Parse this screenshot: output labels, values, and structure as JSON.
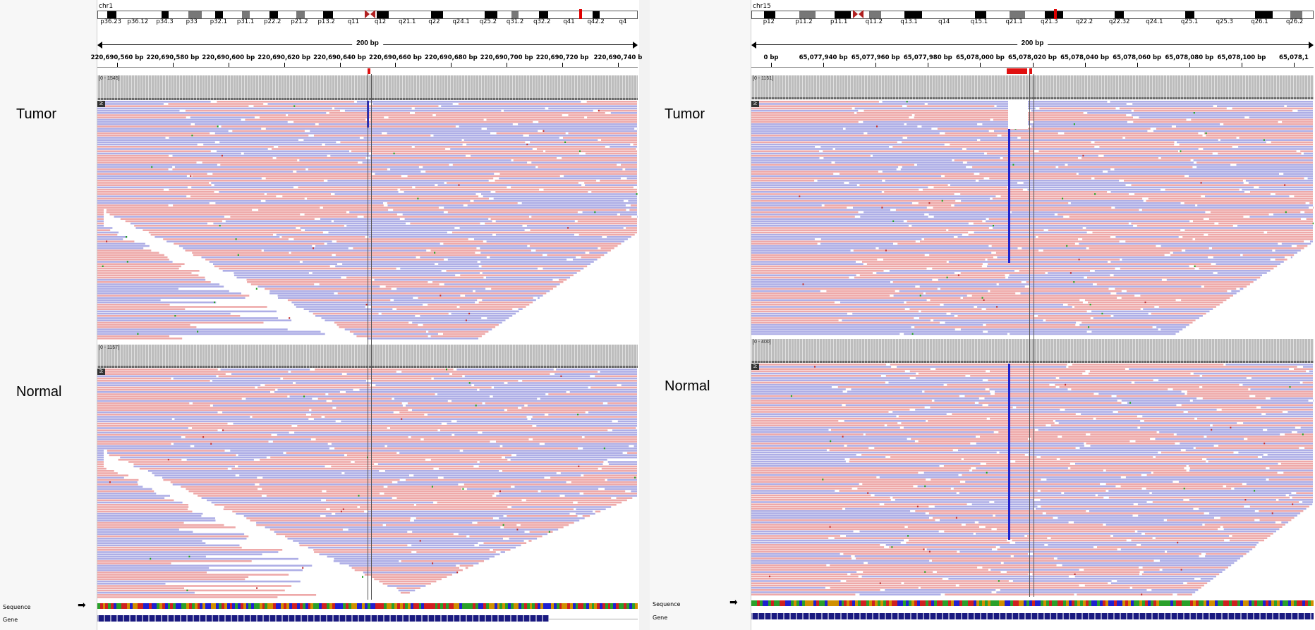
{
  "left": {
    "chromosome": "chr1",
    "bands": [
      "p36.23",
      "p36.12",
      "p34.3",
      "p33",
      "p32.1",
      "p31.1",
      "p22.2",
      "p21.2",
      "p13.2",
      "q11",
      "q12",
      "q21.1",
      "q22",
      "q24.1",
      "q25.2",
      "q31.2",
      "q32.2",
      "q41",
      "q42.2",
      "q4"
    ],
    "span_label": "200 bp",
    "ticks": [
      "220,690,560 bp",
      "220,690,580 bp",
      "220,690,600 bp",
      "220,690,620 bp",
      "220,690,640 bp",
      "220,690,660 bp",
      "220,690,680 bp",
      "220,690,700 bp",
      "220,690,720 bp",
      "220,690,740 b"
    ],
    "tumor": {
      "label": "Tumor",
      "coverage_scale": "[0 - 1545]",
      "tag": "3:"
    },
    "normal": {
      "label": "Normal",
      "coverage_scale": "[0 - 1157]",
      "tag": "3:"
    },
    "sequence_label": "Sequence",
    "gene_label": "Gene"
  },
  "right": {
    "chromosome": "chr15",
    "bands": [
      "p12",
      "p11.2",
      "p11.1",
      "q11.2",
      "q13.1",
      "q14",
      "q15.1",
      "q21.1",
      "q21.3",
      "q22.2",
      "q22.32",
      "q24.1",
      "q25.1",
      "q25.3",
      "q26.1",
      "q26.2"
    ],
    "span_label": "200 bp",
    "ticks": [
      "0 bp",
      "65,077,940 bp",
      "65,077,960 bp",
      "65,077,980 bp",
      "65,078,000 bp",
      "65,078,020 bp",
      "65,078,040 bp",
      "65,078,060 bp",
      "65,078,080 bp",
      "65,078,100 bp",
      "65,078,1"
    ],
    "tumor": {
      "label": "Tumor",
      "coverage_scale": "[0 - 1151]",
      "tag": "3:"
    },
    "normal": {
      "label": "Normal",
      "coverage_scale": "[0 - 400]",
      "tag": "3:"
    },
    "sequence_label": "Sequence",
    "gene_label": "Gene"
  },
  "colors": {
    "read_forward": "#eea9a9",
    "read_reverse": "#aeaee6",
    "coverage": "#bdbdbd",
    "deletion": "#2222cc",
    "marker": "#e01010"
  }
}
